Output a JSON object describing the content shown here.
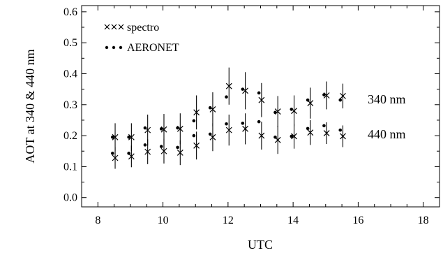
{
  "chart_data": {
    "type": "scatter",
    "xlabel": "UTC",
    "ylabel": "AOT at 340 & 440 nm",
    "xlim": [
      7.5,
      18.5
    ],
    "ylim": [
      -0.03,
      0.62
    ],
    "xticks": [
      8,
      10,
      12,
      14,
      16,
      18
    ],
    "xtick_labels": [
      "8",
      "10",
      "12",
      "14",
      "16",
      "18"
    ],
    "yticks": [
      0.0,
      0.1,
      0.2,
      0.3,
      0.4,
      0.5,
      0.6
    ],
    "ytick_labels": [
      "0.0",
      "0.1",
      "0.2",
      "0.3",
      "0.4",
      "0.5",
      "0.6"
    ],
    "grid": false,
    "legend_position": "top-left",
    "legend": [
      {
        "label": "spectro",
        "marker": "xxx"
      },
      {
        "label": "AERONET",
        "marker": "..."
      }
    ],
    "annotations": [
      "340 nm",
      "440 nm"
    ],
    "x": [
      8.5,
      9.0,
      9.5,
      10.0,
      10.5,
      11.0,
      11.5,
      12.0,
      12.5,
      13.0,
      13.5,
      14.0,
      14.5,
      15.0,
      15.5
    ],
    "series": [
      {
        "name": "spectro",
        "wavelength": "340 nm",
        "marker": "x",
        "values": [
          0.195,
          0.195,
          0.218,
          0.22,
          0.222,
          0.275,
          0.285,
          0.36,
          0.345,
          0.315,
          0.278,
          0.28,
          0.305,
          0.33,
          0.328
        ],
        "error": [
          0.045,
          0.045,
          0.05,
          0.05,
          0.05,
          0.055,
          0.055,
          0.06,
          0.06,
          0.055,
          0.05,
          0.05,
          0.05,
          0.045,
          0.04
        ]
      },
      {
        "name": "AERONET",
        "wavelength": "340 nm",
        "marker": "dot",
        "values": [
          0.195,
          0.195,
          0.225,
          0.222,
          0.225,
          0.248,
          0.29,
          0.325,
          0.35,
          0.338,
          0.275,
          0.285,
          0.315,
          0.332,
          0.315
        ]
      },
      {
        "name": "spectro",
        "wavelength": "440 nm",
        "marker": "x",
        "values": [
          0.128,
          0.133,
          0.148,
          0.15,
          0.145,
          0.168,
          0.195,
          0.218,
          0.222,
          0.2,
          0.186,
          0.198,
          0.21,
          0.208,
          0.198
        ],
        "error": [
          0.035,
          0.035,
          0.04,
          0.04,
          0.04,
          0.045,
          0.045,
          0.05,
          0.05,
          0.045,
          0.045,
          0.04,
          0.04,
          0.035,
          0.035
        ]
      },
      {
        "name": "AERONET",
        "wavelength": "440 nm",
        "marker": "dot",
        "values": [
          0.143,
          0.143,
          0.17,
          0.165,
          0.162,
          0.2,
          0.205,
          0.238,
          0.24,
          0.245,
          0.195,
          0.198,
          0.223,
          0.232,
          0.218
        ]
      }
    ]
  }
}
